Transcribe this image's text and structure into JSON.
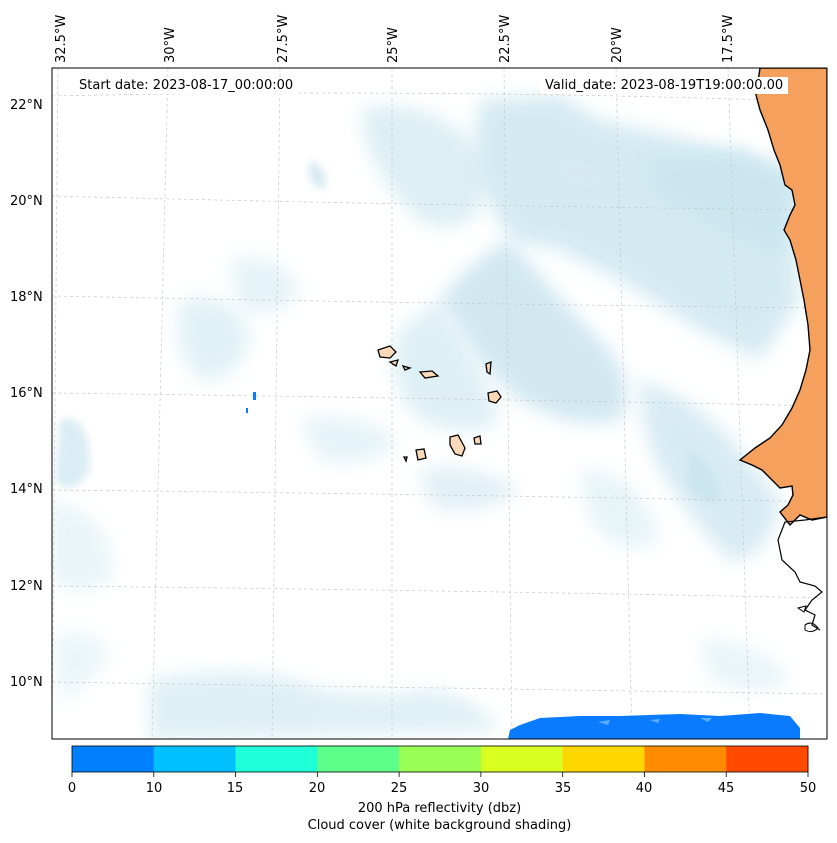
{
  "map": {
    "start_date": "Start date: 2023-08-17_00:00:00",
    "valid_date": "Valid_date: 2023-08-19T19:00:00.00",
    "lon_labels": [
      "32.5°W",
      "30°W",
      "27.5°W",
      "25°W",
      "22.5°W",
      "20°W",
      "17.5°W"
    ],
    "lat_labels": [
      "22°N",
      "20°N",
      "18°N",
      "16°N",
      "14°N",
      "12°N",
      "10°N"
    ],
    "colors": {
      "land": "#f5a05d",
      "land_light": "#fcd9b9",
      "cloud": "#d6ecf3",
      "grid": "#c8c8c8"
    }
  },
  "colorbar": {
    "ticks": [
      "0",
      "10",
      "15",
      "20",
      "25",
      "30",
      "35",
      "40",
      "45",
      "50"
    ],
    "colors": [
      "#0080ff",
      "#00c0ff",
      "#1fffd8",
      "#5cff8a",
      "#9aff55",
      "#d8ff1f",
      "#ffd700",
      "#ff8c00",
      "#ff4a00"
    ],
    "label_line1": "200 hPa reflectivity (dbz)",
    "label_line2": "Cloud cover (white background shading)"
  }
}
